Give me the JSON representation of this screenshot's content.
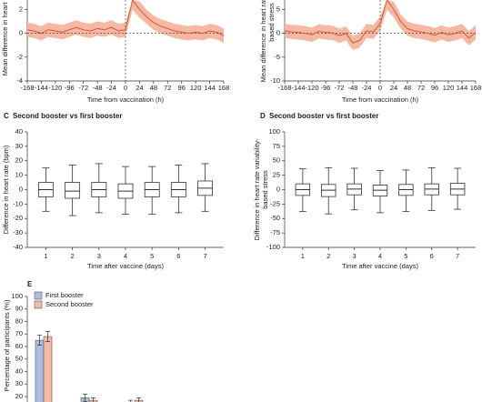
{
  "chart_data": [
    {
      "type": "line",
      "x": [
        -168,
        -156,
        -144,
        -132,
        -120,
        -108,
        -96,
        -84,
        -72,
        -60,
        -48,
        -36,
        -24,
        -12,
        0,
        12,
        24,
        36,
        48,
        60,
        72,
        84,
        96,
        108,
        120,
        132,
        144,
        156,
        168
      ],
      "values": [
        0.3,
        0.2,
        0.0,
        0.3,
        0.2,
        0.1,
        0.3,
        0.5,
        0.3,
        0.2,
        0.4,
        0.3,
        0.5,
        0.2,
        0.3,
        2.8,
        2.0,
        1.4,
        0.9,
        0.6,
        0.4,
        0.2,
        0.1,
        0.0,
        0.1,
        0.0,
        0.2,
        0.1,
        -0.2
      ],
      "lower": [
        -0.3,
        -0.4,
        -0.6,
        -0.3,
        -0.4,
        -0.5,
        -0.3,
        -0.1,
        -0.3,
        -0.4,
        -0.2,
        -0.3,
        -0.1,
        -0.4,
        -0.3,
        2.0,
        1.3,
        0.8,
        0.3,
        0.0,
        -0.2,
        -0.4,
        -0.5,
        -0.6,
        -0.5,
        -0.6,
        -0.4,
        -0.5,
        -0.8
      ],
      "upper": [
        0.9,
        0.8,
        0.6,
        0.9,
        0.8,
        0.7,
        0.9,
        1.1,
        0.9,
        0.8,
        1.0,
        0.9,
        1.1,
        0.8,
        0.9,
        2.8,
        2.7,
        2.0,
        1.5,
        1.2,
        1.0,
        0.8,
        0.7,
        0.6,
        0.7,
        0.6,
        0.8,
        0.7,
        0.4
      ],
      "color": "#d4573a",
      "band_color": "#f5b8a2",
      "xlabel": "Time from vaccination (h)",
      "ylabel": [
        "Mean difference in heart rate (bpm)"
      ],
      "xlim": [
        -168,
        168
      ],
      "xticks": [
        -168,
        -144,
        -120,
        -96,
        -72,
        -48,
        -24,
        0,
        24,
        48,
        72,
        96,
        120,
        144,
        168
      ],
      "ylim": [
        -4,
        2.8
      ],
      "yticks": [
        -4,
        -2,
        0,
        2
      ]
    },
    {
      "type": "line",
      "x": [
        -168,
        -156,
        -144,
        -132,
        -120,
        -108,
        -96,
        -84,
        -72,
        -60,
        -48,
        -36,
        -24,
        -12,
        0,
        12,
        24,
        36,
        48,
        60,
        72,
        84,
        96,
        108,
        120,
        132,
        144,
        156,
        168
      ],
      "values": [
        0.5,
        0.3,
        0.2,
        0.0,
        -0.3,
        0.4,
        0.2,
        0.1,
        -0.5,
        0.0,
        -2.0,
        -1.5,
        0.5,
        0.3,
        2.0,
        7.0,
        5.0,
        2.5,
        1.0,
        0.5,
        0.3,
        0.0,
        -0.4,
        0.2,
        -0.3,
        0.0,
        0.5,
        -1.0,
        0.2
      ],
      "lower": [
        -1.0,
        -1.2,
        -1.3,
        -1.5,
        -1.8,
        -1.1,
        -1.3,
        -1.4,
        -2.0,
        -1.5,
        -3.5,
        -3.0,
        -1.0,
        -1.2,
        0.5,
        5.0,
        3.3,
        1.0,
        -0.5,
        -1.0,
        -1.2,
        -1.5,
        -1.9,
        -1.3,
        -1.8,
        -1.5,
        -1.0,
        -2.5,
        -1.3
      ],
      "upper": [
        2.0,
        1.8,
        1.7,
        1.5,
        1.2,
        1.9,
        1.7,
        1.6,
        1.0,
        1.5,
        -0.5,
        0.0,
        2.0,
        1.8,
        3.5,
        7.0,
        6.7,
        4.0,
        2.5,
        2.0,
        1.8,
        1.5,
        1.1,
        1.7,
        1.2,
        1.5,
        2.0,
        0.5,
        1.7
      ],
      "color": "#d4573a",
      "band_color": "#f5b8a2",
      "xlabel": "Time from vaccination (h)",
      "ylabel": [
        "Mean difference in heart rate variability-",
        "based stress"
      ],
      "xlim": [
        -168,
        168
      ],
      "xticks": [
        -168,
        -144,
        -120,
        -96,
        -72,
        -48,
        -24,
        0,
        24,
        48,
        72,
        96,
        120,
        144,
        168
      ],
      "ylim": [
        -10,
        7
      ],
      "yticks": [
        -10,
        -5,
        0,
        5
      ]
    },
    {
      "type": "box",
      "panel": "C",
      "title": "Second booster vs first booster",
      "categories": [
        "1",
        "2",
        "3",
        "4",
        "5",
        "6",
        "7"
      ],
      "boxes": [
        [
          -15,
          -5,
          0,
          5,
          15
        ],
        [
          -18,
          -6,
          -1,
          5,
          17
        ],
        [
          -16,
          -5,
          0,
          5,
          18
        ],
        [
          -17,
          -6,
          -1,
          4,
          16
        ],
        [
          -17,
          -5,
          0,
          5,
          16
        ],
        [
          -16,
          -5,
          0,
          5,
          17
        ],
        [
          -15,
          -4,
          1,
          6,
          18
        ]
      ],
      "xlabel": "Time after vaccine (days)",
      "ylabel": [
        "Difference in heart rate (bpm)"
      ],
      "ylim": [
        -40,
        40
      ],
      "yticks": [
        -40,
        -30,
        -20,
        -10,
        0,
        10,
        20,
        30,
        40
      ]
    },
    {
      "type": "box",
      "panel": "D",
      "title": "Second booster vs first booster",
      "categories": [
        "1",
        "2",
        "3",
        "4",
        "5",
        "6",
        "7"
      ],
      "boxes": [
        [
          -38,
          -10,
          0,
          10,
          36
        ],
        [
          -42,
          -12,
          -1,
          9,
          38
        ],
        [
          -35,
          -9,
          1,
          10,
          37
        ],
        [
          -40,
          -11,
          -1,
          8,
          33
        ],
        [
          -38,
          -10,
          0,
          9,
          34
        ],
        [
          -36,
          -9,
          1,
          10,
          38
        ],
        [
          -34,
          -9,
          1,
          11,
          37
        ]
      ],
      "xlabel": "Time after vaccine (days)",
      "ylabel": [
        "Difference in heart rate variability-",
        "based stress"
      ],
      "ylim": [
        -100,
        100
      ],
      "yticks": [
        -100,
        -75,
        -50,
        -25,
        0,
        25,
        50,
        75,
        100
      ]
    },
    {
      "type": "bar",
      "panel": "E",
      "categories": [
        null,
        null,
        null
      ],
      "series": [
        {
          "name": "First booster",
          "color": "#aebde3",
          "values": [
            65,
            19,
            14
          ],
          "errors": [
            4,
            3,
            3
          ]
        },
        {
          "name": "Second booster",
          "color": "#f3bba8",
          "values": [
            68,
            17,
            17
          ],
          "errors": [
            4,
            2,
            2
          ]
        }
      ],
      "ylabel": [
        "Percentage of participants (%)"
      ],
      "ylim": [
        0,
        100
      ],
      "yticks": [
        20,
        30,
        40,
        50,
        60,
        70,
        80,
        90,
        100
      ]
    }
  ]
}
